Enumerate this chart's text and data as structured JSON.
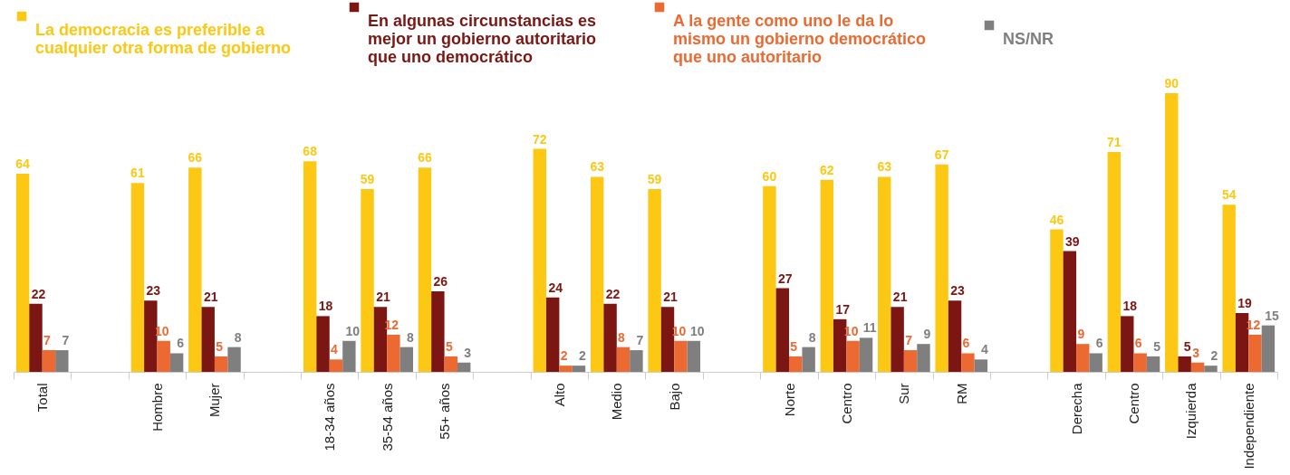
{
  "chart_data": {
    "type": "bar",
    "categories": [
      "Total",
      null,
      "Hombre",
      "Mujer",
      null,
      "18-34 años",
      "35-54 años",
      "55+ años",
      null,
      "Alto",
      "Medio",
      "Bajo",
      null,
      "Norte",
      "Centro",
      "Sur",
      "RM",
      null,
      "Derecha",
      "Centro",
      "Izquierda",
      "Independiente"
    ],
    "series": [
      {
        "name": "La democracia es preferible a cualquier otra forma de gobierno",
        "color": "#fcc813",
        "values": [
          64,
          null,
          61,
          66,
          null,
          68,
          59,
          66,
          null,
          72,
          63,
          59,
          null,
          60,
          62,
          63,
          67,
          null,
          46,
          71,
          90,
          54
        ]
      },
      {
        "name": "En algunas circunstancias es mejor un gobierno autoritario que uno democrático",
        "color": "#7b1612",
        "values": [
          22,
          null,
          23,
          21,
          null,
          18,
          21,
          26,
          null,
          24,
          22,
          21,
          null,
          27,
          17,
          21,
          23,
          null,
          39,
          18,
          5,
          19
        ]
      },
      {
        "name": "A la gente como uno le da lo mismo un gobierno democrático que uno autoritario",
        "color": "#ec6a32",
        "values": [
          7,
          null,
          10,
          5,
          null,
          4,
          12,
          5,
          null,
          2,
          8,
          10,
          null,
          5,
          10,
          7,
          6,
          null,
          9,
          6,
          3,
          12
        ]
      },
      {
        "name": "NS/NR",
        "color": "#7f7f7f",
        "values": [
          7,
          null,
          6,
          8,
          null,
          10,
          8,
          3,
          null,
          2,
          7,
          10,
          null,
          8,
          11,
          9,
          4,
          null,
          6,
          5,
          2,
          15
        ]
      }
    ],
    "data_labels": true,
    "legend": "top",
    "grid": false
  }
}
